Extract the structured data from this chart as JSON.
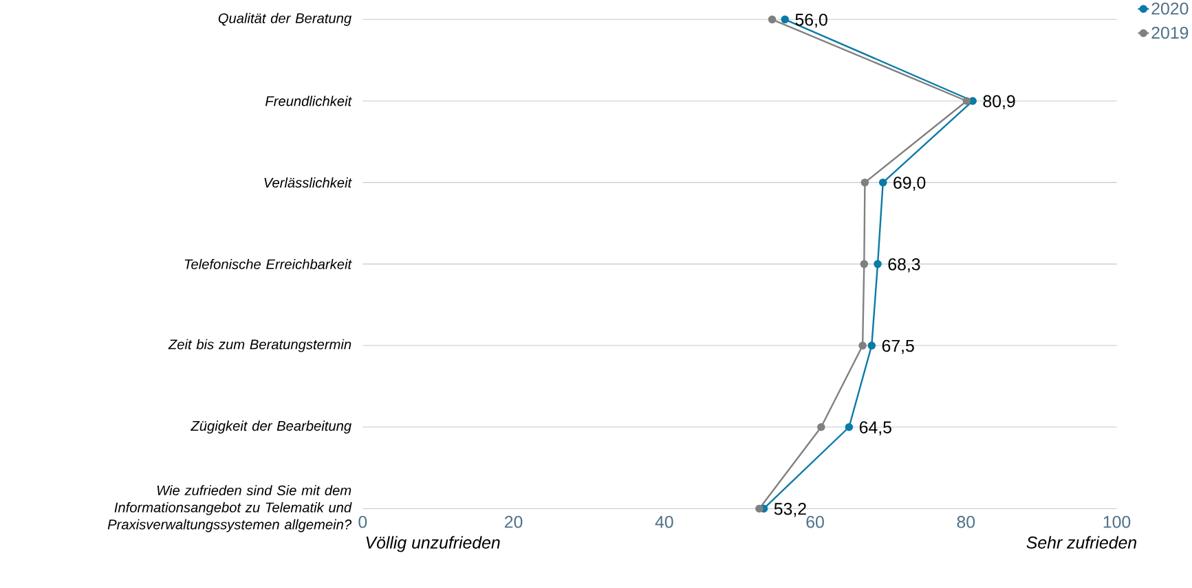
{
  "chart_data": {
    "type": "line",
    "orientation": "horizontal",
    "categories": [
      "Qualität der Beratung",
      "Freundlichkeit",
      "Verlässlichkeit",
      "Telefonische Erreichbarkeit",
      "Zeit bis zum Beratungstermin",
      "Zügigkeit der Bearbeitung",
      "Wie zufrieden sind Sie mit dem Informationsangebot zu Telematik und Praxisverwaltungssystemen allgemein?"
    ],
    "series": [
      {
        "name": "2020",
        "color": "#0a7aa6",
        "values": [
          56.0,
          80.9,
          69.0,
          68.3,
          67.5,
          64.5,
          53.2
        ],
        "value_labels": [
          "56,0",
          "80,9",
          "69,0",
          "68,3",
          "67,5",
          "64,5",
          "53,2"
        ]
      },
      {
        "name": "2019",
        "color": "#808080",
        "values": [
          54.3,
          80.1,
          66.6,
          66.5,
          66.3,
          60.8,
          52.6
        ]
      }
    ],
    "xlim": [
      0,
      100
    ],
    "xticks": [
      0,
      20,
      40,
      60,
      80,
      100
    ],
    "grid": "y",
    "legend": "top right",
    "marker": "circle",
    "annotations": [
      "Völlig unzufrieden",
      "Sehr zufrieden"
    ]
  }
}
